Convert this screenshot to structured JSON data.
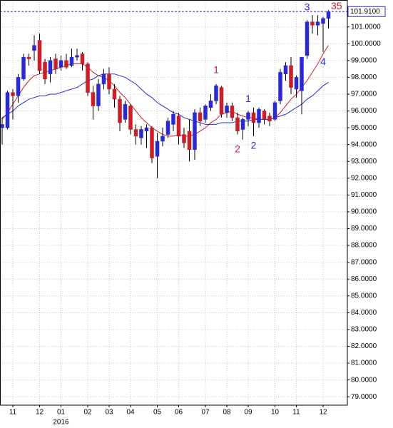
{
  "chart_data": {
    "type": "candlestick",
    "categories": [
      null,
      null,
      "11",
      null,
      null,
      null,
      null,
      "12",
      null,
      null,
      null,
      "01",
      null,
      null,
      null,
      null,
      "02",
      null,
      null,
      null,
      "03",
      null,
      null,
      null,
      "04",
      null,
      null,
      null,
      null,
      "05",
      null,
      null,
      null,
      "06",
      null,
      null,
      null,
      null,
      "07",
      null,
      null,
      null,
      "08",
      null,
      null,
      null,
      "09",
      null,
      null,
      null,
      null,
      "10",
      null,
      null,
      null,
      "11",
      null,
      null,
      null,
      null,
      "12",
      null
    ],
    "year_label": "2016",
    "year_index": 11,
    "open": [
      95.0,
      95.0,
      97.1,
      96.9,
      97.9,
      99.2,
      99.6,
      100.2,
      98.9,
      98.2,
      99.1,
      98.6,
      99.0,
      98.7,
      99.2,
      99.4,
      98.8,
      97.1,
      96.3,
      97.6,
      98.2,
      97.3,
      96.7,
      95.5,
      96.3,
      94.9,
      94.4,
      94.8,
      95.0,
      93.3,
      94.2,
      94.6,
      95.2,
      95.7,
      94.6,
      94.8,
      93.7,
      95.9,
      95.5,
      96.2,
      96.6,
      97.4,
      95.9,
      96.3,
      95.6,
      94.9,
      95.5,
      95.9,
      95.3,
      96.0,
      95.7,
      95.5,
      96.6,
      98.2,
      98.7,
      97.3,
      97.2,
      99.3,
      101.3,
      101.1,
      101.2,
      101.5
    ],
    "high": [
      95.6,
      97.2,
      97.3,
      98.2,
      99.4,
      99.4,
      100.5,
      100.6,
      99.1,
      99.2,
      99.4,
      99.3,
      99.4,
      99.7,
      99.7,
      99.5,
      98.9,
      97.5,
      97.9,
      98.5,
      98.6,
      97.6,
      96.9,
      96.6,
      96.4,
      95.2,
      95.1,
      95.2,
      95.1,
      94.7,
      95.0,
      95.6,
      96.0,
      95.9,
      95.0,
      95.5,
      96.1,
      96.2,
      96.4,
      97.0,
      97.6,
      97.5,
      96.5,
      96.5,
      95.9,
      95.6,
      96.0,
      96.2,
      96.2,
      96.1,
      95.9,
      96.6,
      98.5,
      98.9,
      99.2,
      98.1,
      99.2,
      101.4,
      101.7,
      101.7,
      101.6,
      102.0
    ],
    "low": [
      94.0,
      94.9,
      95.5,
      96.5,
      97.8,
      98.7,
      99.0,
      98.2,
      97.6,
      97.7,
      98.2,
      98.4,
      98.5,
      98.6,
      99.0,
      98.4,
      96.9,
      95.5,
      96.0,
      97.3,
      97.0,
      96.2,
      94.8,
      95.3,
      94.6,
      94.0,
      94.0,
      93.8,
      92.9,
      92.0,
      93.9,
      94.4,
      94.8,
      94.0,
      93.8,
      93.0,
      93.1,
      95.1,
      95.3,
      96.0,
      96.4,
      95.6,
      95.6,
      95.4,
      94.6,
      94.3,
      95.1,
      94.5,
      95.0,
      95.2,
      95.1,
      95.4,
      96.4,
      97.8,
      97.0,
      96.8,
      95.8,
      99.1,
      100.6,
      100.5,
      99.5,
      100.9
    ],
    "close": [
      95.2,
      97.1,
      96.9,
      98.0,
      99.2,
      99.1,
      99.9,
      98.4,
      97.9,
      99.0,
      98.5,
      99.0,
      98.6,
      99.2,
      99.3,
      98.8,
      97.1,
      96.3,
      97.6,
      98.2,
      97.3,
      96.7,
      95.3,
      96.4,
      94.9,
      94.5,
      94.9,
      95.0,
      93.2,
      94.2,
      94.5,
      95.4,
      95.8,
      94.5,
      94.1,
      93.7,
      95.9,
      95.4,
      96.3,
      96.6,
      97.5,
      95.8,
      96.3,
      95.6,
      94.8,
      95.5,
      95.9,
      95.3,
      96.1,
      95.5,
      95.4,
      96.5,
      98.3,
      98.7,
      97.4,
      98.0,
      99.2,
      101.3,
      101.1,
      101.3,
      101.5,
      101.91
    ],
    "up_color": "#2a2ad0",
    "down_color": "#c8202a",
    "series": [
      {
        "color": "#c8202a",
        "values": [
          95.5,
          95.9,
          96.4,
          96.9,
          97.4,
          97.8,
          98.1,
          98.2,
          98.3,
          98.4,
          98.5,
          98.6,
          98.7,
          98.8,
          98.8,
          98.8,
          98.6,
          98.3,
          98.1,
          98.0,
          97.8,
          97.5,
          97.1,
          96.8,
          96.4,
          96.0,
          95.6,
          95.3,
          95.0,
          94.8,
          94.6,
          94.5,
          94.5,
          94.6,
          94.5,
          94.5,
          94.6,
          94.8,
          95.0,
          95.3,
          95.5,
          95.8,
          95.9,
          96.0,
          95.8,
          95.7,
          95.6,
          95.6,
          95.5,
          95.5,
          95.5,
          95.6,
          95.9,
          96.3,
          96.7,
          97.0,
          97.4,
          97.8,
          98.3,
          98.8,
          99.4,
          99.9
        ]
      },
      {
        "color": "#2a2ad0",
        "values": [
          95.6,
          95.8,
          96.0,
          96.3,
          96.5,
          96.7,
          96.8,
          96.9,
          96.9,
          97.0,
          97.0,
          97.1,
          97.2,
          97.3,
          97.4,
          97.6,
          97.8,
          97.9,
          98.1,
          98.2,
          98.2,
          98.2,
          98.1,
          98.0,
          97.8,
          97.6,
          97.3,
          97.0,
          96.8,
          96.5,
          96.3,
          96.1,
          95.9,
          95.8,
          95.6,
          95.5,
          95.4,
          95.3,
          95.2,
          95.2,
          95.2,
          95.3,
          95.3,
          95.3,
          95.4,
          95.4,
          95.4,
          95.5,
          95.5,
          95.5,
          95.5,
          95.6,
          95.7,
          95.8,
          96.0,
          96.2,
          96.4,
          96.7,
          96.9,
          97.2,
          97.5,
          97.7
        ]
      }
    ],
    "annotations": [
      {
        "text": "1",
        "color": "#c8202a",
        "index": 40,
        "price": 98.4
      },
      {
        "text": "2",
        "color": "#c8202a",
        "index": 44,
        "price": 93.7
      },
      {
        "text": "1",
        "color": "#2a2ad0",
        "index": 46,
        "price": 96.7
      },
      {
        "text": "2",
        "color": "#2a2ad0",
        "index": 47,
        "price": 93.9
      },
      {
        "text": "3",
        "color": "#2a2ad0",
        "index": 57,
        "price": 102.15
      },
      {
        "text": "4",
        "color": "#2a2ad0",
        "index": 60,
        "price": 98.9
      },
      {
        "text": "35",
        "color": "#c8202a",
        "index": 62.5,
        "price": 102.2
      }
    ],
    "last_price": 101.91,
    "last_price_label": "101.9100",
    "ylim": [
      78.5,
      102.6
    ],
    "yticks": [
      {
        "value": 79,
        "label": "79.0000"
      },
      {
        "value": 80,
        "label": "80.0000"
      },
      {
        "value": 81,
        "label": "81.0000"
      },
      {
        "value": 82,
        "label": "82.0000"
      },
      {
        "value": 83,
        "label": "83.0000"
      },
      {
        "value": 84,
        "label": "84.0000"
      },
      {
        "value": 85,
        "label": "85.0000"
      },
      {
        "value": 86,
        "label": "86.0000"
      },
      {
        "value": 87,
        "label": "87.0000"
      },
      {
        "value": 88,
        "label": "88.0000"
      },
      {
        "value": 89,
        "label": "89.0000"
      },
      {
        "value": 90,
        "label": "90.0000"
      },
      {
        "value": 91,
        "label": "91.0000"
      },
      {
        "value": 92,
        "label": "92.0000"
      },
      {
        "value": 93,
        "label": "93.0000"
      },
      {
        "value": 94,
        "label": "94.0000"
      },
      {
        "value": 95,
        "label": "95.0000"
      },
      {
        "value": 96,
        "label": "96.0000"
      },
      {
        "value": 97,
        "label": "97.0000"
      },
      {
        "value": 98,
        "label": "98.0000"
      },
      {
        "value": 99,
        "label": "99.0000"
      },
      {
        "value": 100,
        "label": "100.0000"
      },
      {
        "value": 101,
        "label": "101.0000"
      }
    ],
    "grid": true
  }
}
